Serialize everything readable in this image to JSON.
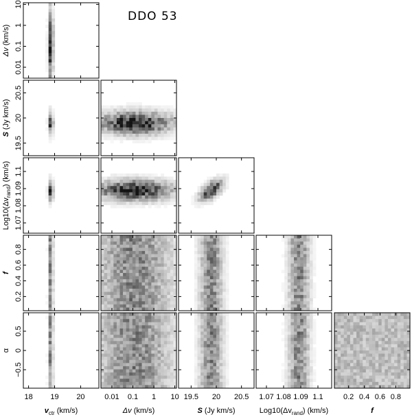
{
  "title": "DDO 53",
  "chart_data": {
    "type": "heatmap",
    "title": "DDO 53",
    "parameters": [
      {
        "key": "vctr",
        "label": "v_ctr (km/s)",
        "scale": "linear",
        "range": [
          17.8,
          20.7
        ],
        "ticks": [
          18,
          19,
          20
        ],
        "tick_labels": [
          "18",
          "19",
          "20"
        ]
      },
      {
        "key": "dv",
        "label": "Δv (km/s)",
        "scale": "log",
        "range": [
          0.003,
          12
        ],
        "ticks": [
          0.01,
          0.1,
          1,
          10
        ],
        "tick_labels": [
          "0.01",
          "0.1",
          "1",
          "10"
        ]
      },
      {
        "key": "S",
        "label": "S (Jy km/s)",
        "scale": "linear",
        "range": [
          19.25,
          20.75
        ],
        "ticks": [
          19.5,
          20,
          20.5
        ],
        "tick_labels": [
          "19.5",
          "20",
          "20.5"
        ]
      },
      {
        "key": "logdv",
        "label": "Log10(Δv_rand) (km/s)",
        "scale": "linear",
        "range": [
          1.064,
          1.108
        ],
        "ticks": [
          1.07,
          1.08,
          1.09,
          1.1
        ],
        "tick_labels": [
          "1.07",
          "1.08",
          "1.09",
          "1.1"
        ]
      },
      {
        "key": "f",
        "label": "f",
        "scale": "linear",
        "range": [
          0.02,
          0.98
        ],
        "ticks": [
          0.2,
          0.4,
          0.6,
          0.8
        ],
        "tick_labels": [
          "0.2",
          "0.4",
          "0.6",
          "0.8"
        ]
      },
      {
        "key": "alpha",
        "label": "α",
        "scale": "linear",
        "range": [
          -0.98,
          0.98
        ],
        "ticks": [
          -0.5,
          0,
          0.5
        ],
        "tick_labels": [
          "−0.5",
          "0",
          "0.5"
        ]
      }
    ],
    "axis_labels": {
      "vctr": {
        "main": "v",
        "sub": "ctr",
        "unit": "(km/s)"
      },
      "dv": {
        "main": "Δv",
        "sub": "",
        "unit": "(km/s)"
      },
      "S": {
        "main": "S",
        "sub": "",
        "unit": "(Jy km/s)"
      },
      "logdv": {
        "main": "Log10(Δv",
        "sub": "rand",
        "unit": ") (km/s)"
      },
      "f": {
        "main": "f",
        "sub": "",
        "unit": ""
      },
      "alpha": {
        "main": "α",
        "sub": "",
        "unit": ""
      }
    },
    "posterior": {
      "vctr": {
        "center": 18.85,
        "sigma": 0.06
      },
      "dv": {
        "center": 0.12,
        "sigma_dex": 1.2,
        "distribution": "broad-log"
      },
      "S": {
        "center": 19.9,
        "sigma": 0.15
      },
      "logdv": {
        "center": 1.089,
        "sigma": 0.004
      },
      "f": {
        "distribution": "uniform"
      },
      "alpha": {
        "distribution": "uniform"
      }
    },
    "correlations": [
      {
        "x": "S",
        "y": "logdv",
        "rho": 0.6
      }
    ],
    "grid": false,
    "legend": "none"
  }
}
